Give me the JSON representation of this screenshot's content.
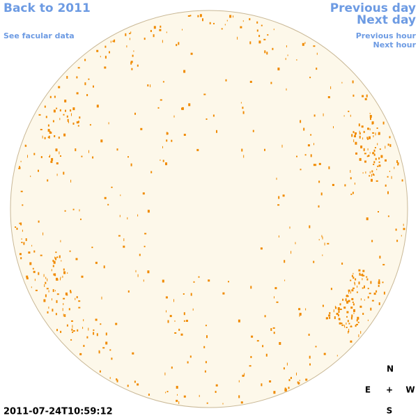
{
  "nav": {
    "back": "Back to 2011",
    "facular": "See facular data",
    "previous_day": "Previous day",
    "next_day": "Next day",
    "previous_hour": "Previous hour",
    "next_hour": "Next hour"
  },
  "timestamp": "2011-07-24T10:59:12",
  "compass": {
    "north": "N",
    "east": "E",
    "center": "+",
    "west": "W",
    "south": "S"
  }
}
